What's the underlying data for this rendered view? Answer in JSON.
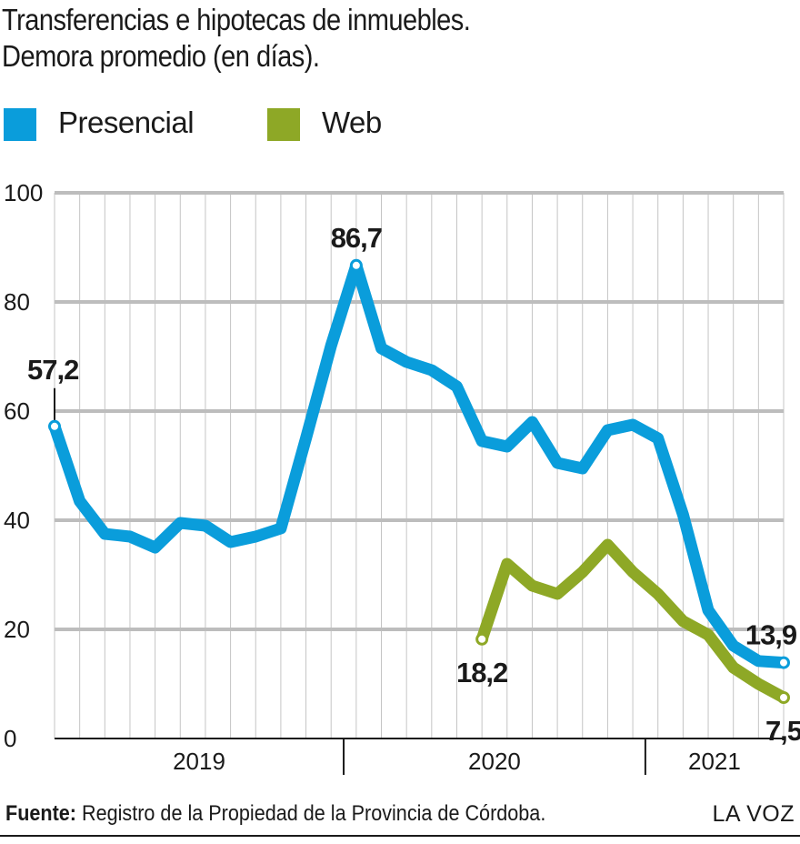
{
  "header": {
    "title_line1": "Transferencias e hipotecas de inmuebles.",
    "title_line2": "Demora promedio (en días)."
  },
  "legend": [
    {
      "label": "Presencial",
      "color": "#0a9ddb"
    },
    {
      "label": "Web",
      "color": "#8ea826"
    }
  ],
  "chart_data": {
    "type": "line",
    "title": "Transferencias e hipotecas de inmuebles. Demora promedio (en días).",
    "ylim": [
      0,
      100
    ],
    "yticks": [
      0,
      20,
      40,
      60,
      80,
      100
    ],
    "grid": true,
    "legend_position": "top-left",
    "x_groups": [
      {
        "label": "2019",
        "from": 0,
        "to": 11
      },
      {
        "label": "2020",
        "from": 12,
        "to": 23
      },
      {
        "label": "2021",
        "from": 24,
        "to": 29
      }
    ],
    "x_count": 30,
    "series": [
      {
        "name": "Presencial",
        "color": "#0a9ddb",
        "start": 0,
        "values": [
          57.2,
          43.5,
          37.5,
          37,
          35,
          39.5,
          39,
          36,
          37,
          38.5,
          55,
          72,
          86.7,
          71.5,
          69,
          67.5,
          64.5,
          54.5,
          53.5,
          58,
          50.5,
          49.5,
          56.5,
          57.5,
          55,
          41,
          23.5,
          17,
          14.2,
          13.9
        ],
        "labels": [
          {
            "index": 0,
            "text": "57,2"
          },
          {
            "index": 12,
            "text": "86,7"
          },
          {
            "index": 29,
            "text": "13,9"
          }
        ]
      },
      {
        "name": "Web",
        "color": "#8ea826",
        "start": 17,
        "values": [
          18.2,
          32,
          28,
          26.5,
          30.5,
          35.5,
          30.5,
          26.5,
          21.5,
          19,
          13,
          10,
          7.5
        ],
        "labels": [
          {
            "index": 17,
            "text": "18,2"
          },
          {
            "index": 29,
            "text": "7,5"
          }
        ]
      }
    ]
  },
  "footer": {
    "source_label": "Fuente:",
    "source_text": " Registro de la Propiedad de la Provincia de Córdoba.",
    "brand": "LA VOZ"
  }
}
